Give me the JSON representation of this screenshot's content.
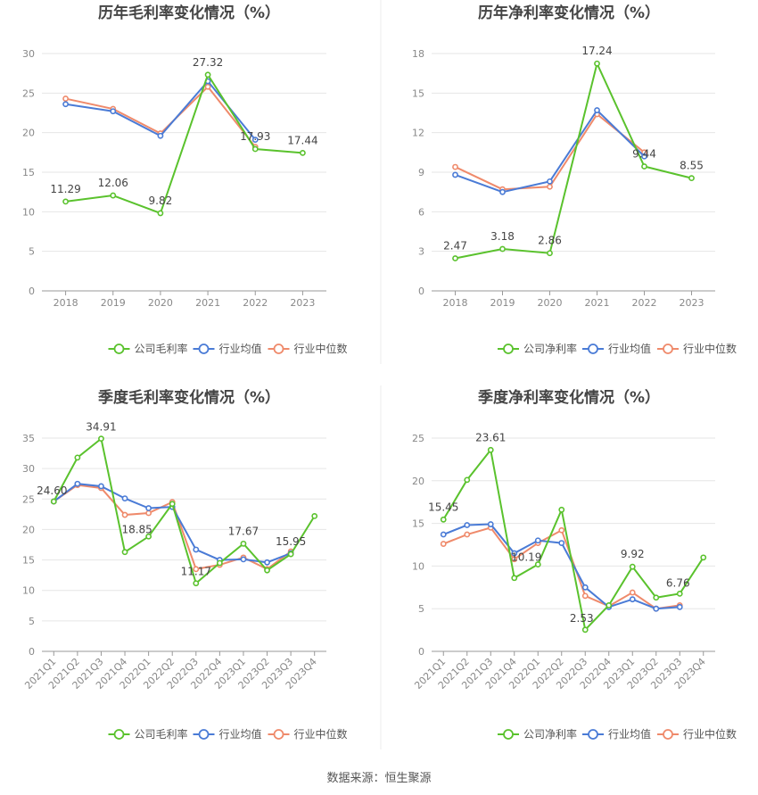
{
  "source": "数据来源：恒生聚源",
  "colors": {
    "company": "#5ac22d",
    "avg": "#4a7bd6",
    "median": "#ef8a6b",
    "grid": "#e6e6e6",
    "axis": "#999999"
  },
  "chart_data": [
    {
      "type": "line",
      "title": "历年毛利率变化情况（%）",
      "categories": [
        "2018",
        "2019",
        "2020",
        "2021",
        "2022",
        "2023"
      ],
      "ylim": [
        0,
        30
      ],
      "yticks": [
        0,
        5,
        10,
        15,
        20,
        25,
        30
      ],
      "rotate_labels": false,
      "series": [
        {
          "name": "公司毛利率",
          "key": "company",
          "values": [
            11.29,
            12.06,
            9.82,
            27.32,
            17.93,
            17.44
          ],
          "labels": [
            "11.29",
            "12.06",
            "9.82",
            "27.32",
            "17.93",
            "17.44"
          ]
        },
        {
          "name": "行业均值",
          "key": "avg",
          "values": [
            23.6,
            22.7,
            19.6,
            26.5,
            19.1,
            null
          ]
        },
        {
          "name": "行业中位数",
          "key": "median",
          "values": [
            24.3,
            23.0,
            19.9,
            25.8,
            18.2,
            null
          ]
        }
      ]
    },
    {
      "type": "line",
      "title": "历年净利率变化情况（%）",
      "categories": [
        "2018",
        "2019",
        "2020",
        "2021",
        "2022",
        "2023"
      ],
      "ylim": [
        0,
        18
      ],
      "yticks": [
        0,
        3,
        6,
        9,
        12,
        15,
        18
      ],
      "rotate_labels": false,
      "series": [
        {
          "name": "公司净利率",
          "key": "company",
          "values": [
            2.47,
            3.18,
            2.86,
            17.24,
            9.44,
            8.55
          ],
          "labels": [
            "2.47",
            "3.18",
            "2.86",
            "17.24",
            "9.44",
            "8.55"
          ]
        },
        {
          "name": "行业均值",
          "key": "avg",
          "values": [
            8.8,
            7.5,
            8.3,
            13.7,
            10.2,
            null
          ]
        },
        {
          "name": "行业中位数",
          "key": "median",
          "values": [
            9.4,
            7.7,
            7.9,
            13.4,
            10.5,
            null
          ]
        }
      ]
    },
    {
      "type": "line",
      "title": "季度毛利率变化情况（%）",
      "categories": [
        "2021Q1",
        "2021Q2",
        "2021Q3",
        "2021Q4",
        "2022Q1",
        "2022Q2",
        "2022Q3",
        "2022Q4",
        "2023Q1",
        "2023Q2",
        "2023Q3",
        "2023Q4"
      ],
      "ylim": [
        0,
        35
      ],
      "yticks": [
        0,
        5,
        10,
        15,
        20,
        25,
        30,
        35
      ],
      "rotate_labels": true,
      "series": [
        {
          "name": "公司毛利率",
          "key": "company",
          "values": [
            24.6,
            31.8,
            34.91,
            16.3,
            18.85,
            24.2,
            11.17,
            14.5,
            17.67,
            13.3,
            15.95,
            22.2
          ],
          "labels": [
            "24.60",
            null,
            "34.91",
            null,
            "18.85",
            null,
            "11.17",
            null,
            "17.67",
            null,
            "15.95",
            null
          ]
        },
        {
          "name": "行业均值",
          "key": "avg",
          "values": [
            24.6,
            27.5,
            27.1,
            25.1,
            23.5,
            23.7,
            16.7,
            15.0,
            15.1,
            14.6,
            16.1,
            null
          ]
        },
        {
          "name": "行业中位数",
          "key": "median",
          "values": [
            24.6,
            27.3,
            26.8,
            22.4,
            22.7,
            24.5,
            13.5,
            14.2,
            15.4,
            13.5,
            16.4,
            null
          ]
        }
      ]
    },
    {
      "type": "line",
      "title": "季度净利率变化情况（%）",
      "categories": [
        "2021Q1",
        "2021Q2",
        "2021Q3",
        "2021Q4",
        "2022Q1",
        "2022Q2",
        "2022Q3",
        "2022Q4",
        "2023Q1",
        "2023Q2",
        "2023Q3",
        "2023Q4"
      ],
      "ylim": [
        0,
        25
      ],
      "yticks": [
        0,
        5,
        10,
        15,
        20,
        25
      ],
      "rotate_labels": true,
      "series": [
        {
          "name": "公司净利率",
          "key": "company",
          "values": [
            15.45,
            20.1,
            23.61,
            8.6,
            10.19,
            16.6,
            2.53,
            5.4,
            9.92,
            6.3,
            6.76,
            11.0
          ],
          "labels": [
            "15.45",
            null,
            "23.61",
            null,
            "10.19",
            null,
            "2.53",
            null,
            "9.92",
            null,
            "6.76",
            null
          ]
        },
        {
          "name": "行业均值",
          "key": "avg",
          "values": [
            13.7,
            14.8,
            14.9,
            11.5,
            13.0,
            12.7,
            7.5,
            5.2,
            6.1,
            5.0,
            5.2,
            null
          ]
        },
        {
          "name": "行业中位数",
          "key": "median",
          "values": [
            12.6,
            13.7,
            14.5,
            10.8,
            12.7,
            14.2,
            6.5,
            5.3,
            6.9,
            5.0,
            5.4,
            null
          ]
        }
      ]
    }
  ]
}
